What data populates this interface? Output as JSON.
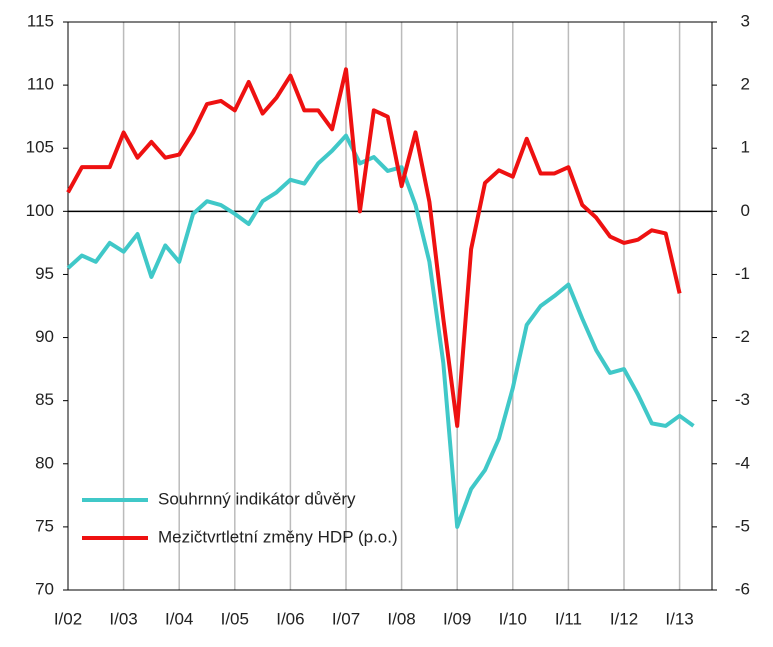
{
  "chart_data": {
    "type": "line",
    "categories": [
      "I/02",
      null,
      null,
      null,
      "I/03",
      null,
      null,
      null,
      "I/04",
      null,
      null,
      null,
      "I/05",
      null,
      null,
      null,
      "I/06",
      null,
      null,
      null,
      "I/07",
      null,
      null,
      null,
      "I/08",
      null,
      null,
      null,
      "I/09",
      null,
      null,
      null,
      "I/10",
      null,
      null,
      null,
      "I/11",
      null,
      null,
      null,
      "I/12",
      null,
      null,
      null,
      "I/13",
      null
    ],
    "series": [
      {
        "name": "Souhrnný indikátor důvěry",
        "color": "#40c8c8",
        "axis": "y",
        "values": [
          95.5,
          96.5,
          96.0,
          97.5,
          96.8,
          98.2,
          94.8,
          97.3,
          96.0,
          99.8,
          100.8,
          100.5,
          99.8,
          99.0,
          100.8,
          101.5,
          102.5,
          102.2,
          103.8,
          104.8,
          106.0,
          103.8,
          104.3,
          103.2,
          103.5,
          100.5,
          96.0,
          88.0,
          75.0,
          78.0,
          79.5,
          82.0,
          86.0,
          91.0,
          92.5,
          93.3,
          94.2,
          91.5,
          89.0,
          87.2,
          87.5,
          85.5,
          83.2,
          83.0,
          83.8,
          83.0
        ]
      },
      {
        "name": "Mezičtvrtletní změny HDP (p.o.)",
        "color": "#ee1111",
        "axis": "y2",
        "values": [
          0.3,
          0.7,
          0.7,
          0.7,
          1.25,
          0.85,
          1.1,
          0.85,
          0.9,
          1.25,
          1.7,
          1.75,
          1.6,
          2.05,
          1.55,
          1.8,
          2.15,
          1.6,
          1.6,
          1.3,
          2.25,
          0.0,
          1.6,
          1.5,
          0.4,
          1.25,
          0.15,
          -1.7,
          -3.4,
          -0.6,
          0.45,
          0.65,
          0.55,
          1.15,
          0.6,
          0.6,
          0.7,
          0.1,
          -0.1,
          -0.4,
          -0.5,
          -0.45,
          -0.3,
          -0.35,
          -1.3,
          null
        ]
      }
    ],
    "ylim": [
      70,
      115
    ],
    "yticks": [
      70,
      75,
      80,
      85,
      90,
      95,
      100,
      105,
      110,
      115
    ],
    "y2lim": [
      -6,
      3
    ],
    "y2ticks": [
      -6,
      -5,
      -4,
      -3,
      -2,
      -1,
      0,
      1,
      2,
      3
    ],
    "grid": true,
    "legend": "lower left"
  }
}
